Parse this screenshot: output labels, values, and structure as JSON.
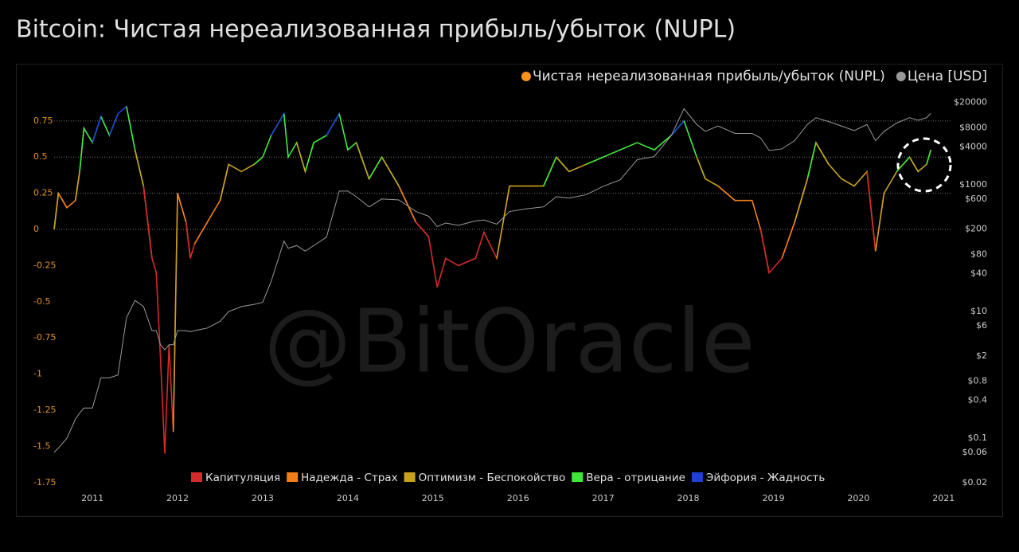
{
  "chart_data": {
    "type": "line",
    "title": "Bitcoin: Чистая нереализованная прибыль/убыток (NUPL)",
    "watermark": "@BitOracle",
    "x": [
      2010.55,
      2010.6,
      2010.7,
      2010.8,
      2010.85,
      2010.9,
      2011.0,
      2011.1,
      2011.2,
      2011.3,
      2011.4,
      2011.5,
      2011.6,
      2011.7,
      2011.75,
      2011.8,
      2011.85,
      2011.9,
      2011.95,
      2012.0,
      2012.1,
      2012.15,
      2012.2,
      2012.35,
      2012.5,
      2012.6,
      2012.75,
      2012.9,
      2013.0,
      2013.1,
      2013.25,
      2013.3,
      2013.4,
      2013.5,
      2013.6,
      2013.75,
      2013.9,
      2014.0,
      2014.1,
      2014.25,
      2014.4,
      2014.6,
      2014.8,
      2014.95,
      2015.05,
      2015.15,
      2015.3,
      2015.5,
      2015.6,
      2015.75,
      2015.9,
      2016.1,
      2016.3,
      2016.45,
      2016.6,
      2016.8,
      2017.0,
      2017.2,
      2017.4,
      2017.6,
      2017.8,
      2017.95,
      2018.1,
      2018.2,
      2018.35,
      2018.55,
      2018.75,
      2018.85,
      2018.95,
      2019.1,
      2019.25,
      2019.4,
      2019.5,
      2019.65,
      2019.8,
      2019.95,
      2020.1,
      2020.2,
      2020.3,
      2020.45,
      2020.6,
      2020.7,
      2020.8,
      2020.85
    ],
    "series": [
      {
        "name": "Чистая нереализованная прибыль/убыток (NUPL)",
        "color": "#f7931a",
        "values": [
          0.0,
          0.25,
          0.15,
          0.2,
          0.4,
          0.7,
          0.6,
          0.78,
          0.65,
          0.8,
          0.85,
          0.55,
          0.3,
          -0.2,
          -0.3,
          -0.9,
          -1.55,
          -0.8,
          -1.4,
          0.25,
          0.05,
          -0.2,
          -0.1,
          0.05,
          0.2,
          0.45,
          0.4,
          0.45,
          0.5,
          0.65,
          0.8,
          0.5,
          0.6,
          0.4,
          0.6,
          0.65,
          0.8,
          0.55,
          0.6,
          0.35,
          0.5,
          0.3,
          0.05,
          -0.05,
          -0.4,
          -0.2,
          -0.25,
          -0.2,
          -0.02,
          -0.2,
          0.3,
          0.3,
          0.3,
          0.5,
          0.4,
          0.45,
          0.5,
          0.55,
          0.6,
          0.55,
          0.65,
          0.75,
          0.5,
          0.35,
          0.3,
          0.2,
          0.2,
          0.0,
          -0.3,
          -0.2,
          0.05,
          0.35,
          0.6,
          0.45,
          0.35,
          0.3,
          0.4,
          -0.15,
          0.25,
          0.4,
          0.5,
          0.4,
          0.45,
          0.55
        ]
      },
      {
        "name": "Цена [USD]",
        "color": "#999999",
        "axis": "y2",
        "values": [
          0.06,
          0.07,
          0.1,
          0.2,
          0.25,
          0.3,
          0.3,
          0.9,
          0.9,
          1,
          8,
          15,
          12,
          5,
          5,
          3,
          2.5,
          3,
          3,
          5,
          5,
          4.8,
          5,
          5.5,
          7,
          10,
          12,
          13,
          14,
          30,
          130,
          100,
          110,
          90,
          110,
          150,
          800,
          800,
          650,
          450,
          600,
          580,
          380,
          320,
          220,
          250,
          230,
          270,
          280,
          240,
          380,
          420,
          450,
          650,
          620,
          700,
          950,
          1200,
          2500,
          2800,
          6000,
          16000,
          9000,
          7000,
          8500,
          6500,
          6500,
          5500,
          3500,
          3700,
          5000,
          9000,
          11500,
          10000,
          8500,
          7200,
          9000,
          5000,
          7000,
          9500,
          11500,
          10500,
          11500,
          13500
        ]
      }
    ],
    "zones": [
      {
        "name": "Капитуляция",
        "color": "#d42a2a"
      },
      {
        "name": "Надежда - Страх",
        "color": "#f07f1a"
      },
      {
        "name": "Оптимизм - Беспокойство",
        "color": "#c8a21c"
      },
      {
        "name": "Вера - отрицание",
        "color": "#3ee83a"
      },
      {
        "name": "Эйфория - Жадность",
        "color": "#1f3fd8"
      }
    ],
    "xlim": [
      2010.55,
      2021.1
    ],
    "xticks": [
      2011,
      2012,
      2013,
      2014,
      2015,
      2016,
      2017,
      2018,
      2019,
      2020,
      2021
    ],
    "ylim": [
      -1.75,
      0.9
    ],
    "yticks": [
      0.75,
      0.5,
      0.25,
      0,
      -0.25,
      -0.5,
      -0.75,
      -1,
      -1.25,
      -1.5,
      -1.75
    ],
    "y2lim": [
      0.02,
      22500
    ],
    "y2log": true,
    "y2ticks": [
      {
        "value": 20000,
        "label": "$20000"
      },
      {
        "value": 8000,
        "label": "$8000"
      },
      {
        "value": 4000,
        "label": "$4000"
      },
      {
        "value": 1000,
        "label": "$1000"
      },
      {
        "value": 600,
        "label": "$600"
      },
      {
        "value": 200,
        "label": "$200"
      },
      {
        "value": 80,
        "label": "$80"
      },
      {
        "value": 40,
        "label": "$40"
      },
      {
        "value": 10,
        "label": "$10"
      },
      {
        "value": 6,
        "label": "$6"
      },
      {
        "value": 2,
        "label": "$2"
      },
      {
        "value": 0.8,
        "label": "$0.8"
      },
      {
        "value": 0.4,
        "label": "$0.4"
      },
      {
        "value": 0.1,
        "label": "$0.1"
      },
      {
        "value": 0.06,
        "label": "$0.06"
      },
      {
        "value": 0.02,
        "label": "$0.02"
      }
    ]
  }
}
